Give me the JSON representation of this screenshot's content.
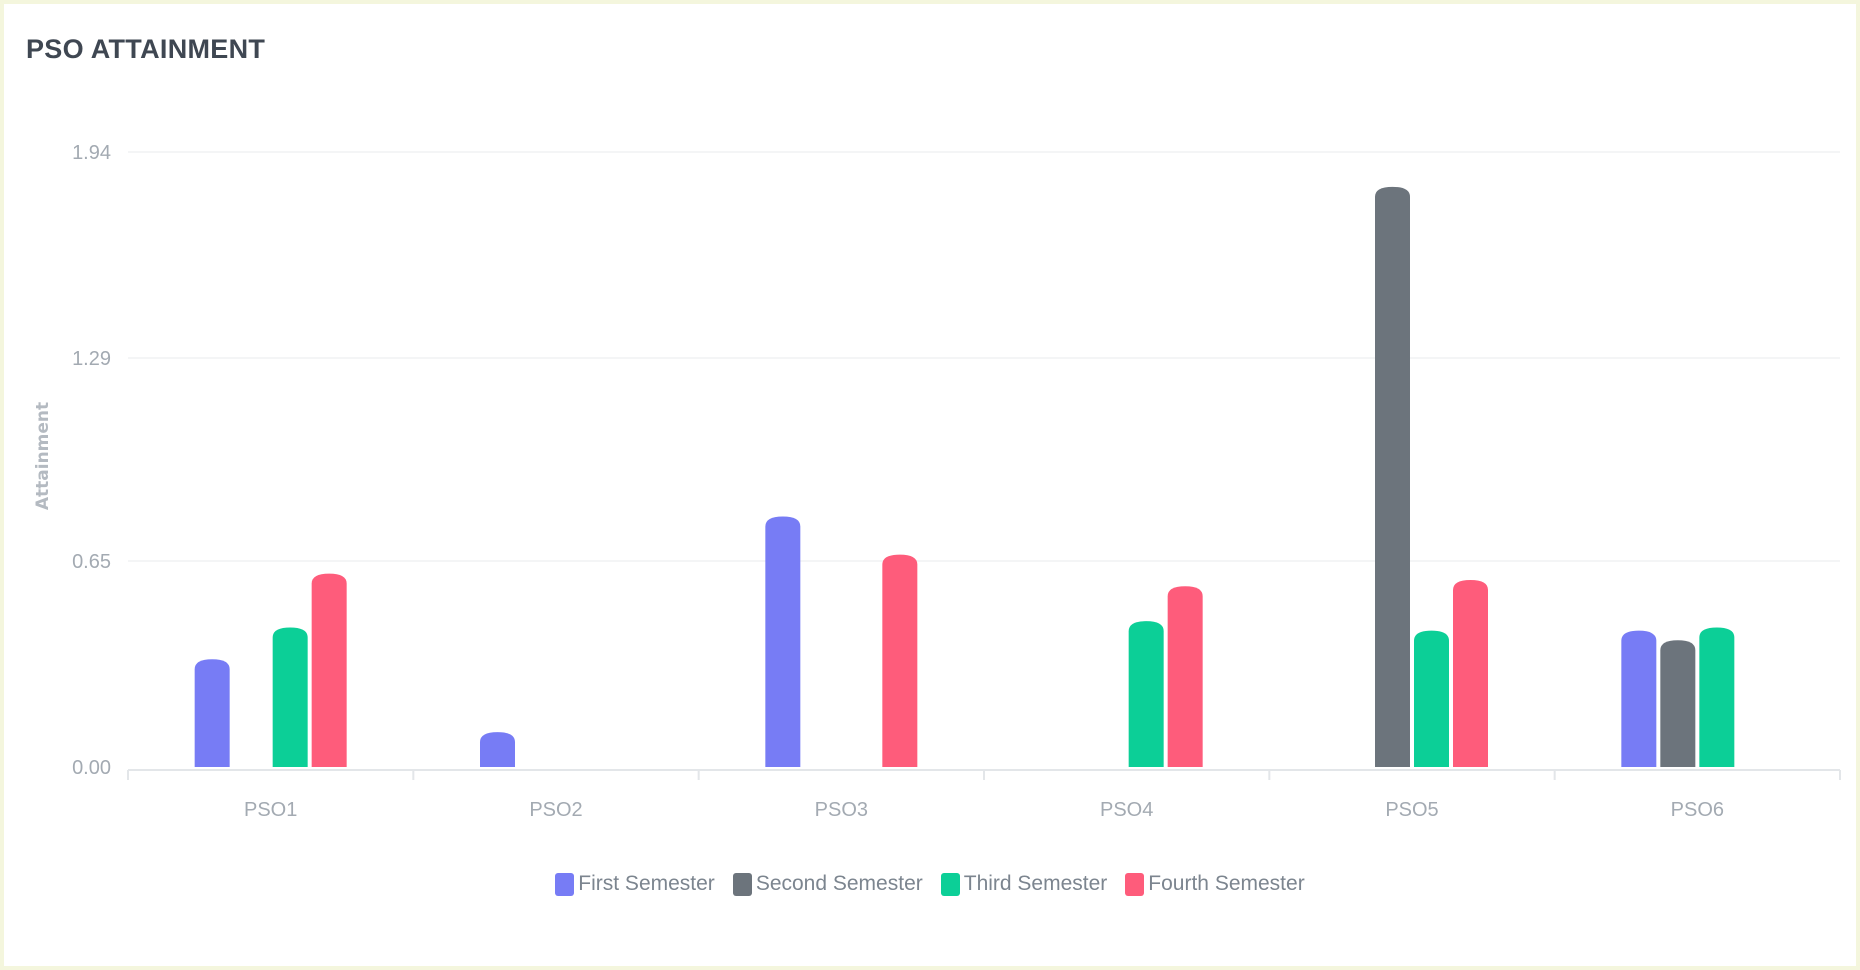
{
  "card": {
    "title": "PSO ATTAINMENT"
  },
  "chart_data": {
    "type": "bar",
    "categories": [
      "PSO1",
      "PSO2",
      "PSO3",
      "PSO4",
      "PSO5",
      "PSO6"
    ],
    "series": [
      {
        "name": "First Semester",
        "color": "#777cf5",
        "values": [
          0.34,
          0.11,
          0.79,
          0,
          0,
          0.43
        ]
      },
      {
        "name": "Second Semester",
        "color": "#6c747c",
        "values": [
          0,
          0,
          0,
          0,
          1.83,
          0.4
        ]
      },
      {
        "name": "Third Semester",
        "color": "#0ccf97",
        "values": [
          0.44,
          0,
          0,
          0.46,
          0.43,
          0.44
        ]
      },
      {
        "name": "Fourth Semester",
        "color": "#fe5c7b",
        "values": [
          0.61,
          0,
          0.67,
          0.57,
          0.59,
          0
        ]
      }
    ],
    "y_ticks": [
      "0.00",
      "0.65",
      "1.29",
      "1.94"
    ],
    "ylim": [
      0,
      1.94
    ],
    "xlabel": "",
    "ylabel": "Attainment",
    "grid": true,
    "legend_position": "bottom-center"
  }
}
